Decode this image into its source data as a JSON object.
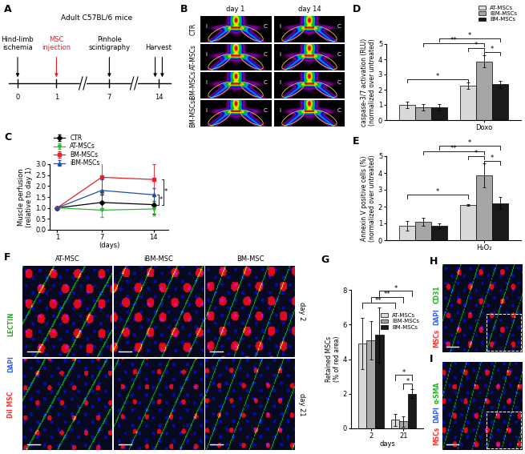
{
  "diagram": {
    "label": "A",
    "title": "Adult C57BL/6 mice",
    "events": [
      {
        "day": 0,
        "text": "Hind-limb\nischemia",
        "color": "#000000"
      },
      {
        "day": 1,
        "text": "MSC\ninjection",
        "color": "#e8202a"
      },
      {
        "day": 7,
        "text": "Pinhole\nscintigraphy",
        "color": "#000000"
      },
      {
        "day": 14,
        "text": "Harvest",
        "color": "#000000"
      }
    ]
  },
  "scintigraphy": {
    "label": "B",
    "columns": [
      "day 1",
      "day 14"
    ],
    "rows": [
      "CTR",
      "AT-MSCs",
      "iBM-MSCs",
      "BM-MSCs"
    ],
    "limbs": [
      "I",
      "C"
    ]
  },
  "chart_data": [
    {
      "label": "C",
      "type": "line",
      "xlabel": "(days)",
      "ylabel": "Muscle perfusion\n(relative to day 1)",
      "x": [
        1,
        7,
        14
      ],
      "xlim": [
        0,
        16
      ],
      "xticks": [
        1,
        7,
        14
      ],
      "ylim": [
        0,
        3
      ],
      "yticks": [
        {
          "value": 0,
          "label": "0.0"
        },
        {
          "value": 0.5,
          "label": "0.5"
        },
        {
          "value": 1,
          "label": "1.0"
        },
        {
          "value": 1.5,
          "label": "1.5"
        },
        {
          "value": 2,
          "label": "2.0"
        },
        {
          "value": 2.5,
          "label": "2.5"
        },
        {
          "value": 3,
          "label": "3.0"
        }
      ],
      "legend": "upper left",
      "series": [
        {
          "name": "CTR",
          "color": "#000000",
          "marker": "diamond",
          "values": [
            1,
            1.25,
            1.15
          ],
          "errors": [
            0,
            0.35,
            0.4
          ]
        },
        {
          "name": "AT-MSCs",
          "color": "#33b833",
          "marker": "triangle_down",
          "values": [
            1,
            0.9,
            0.95
          ],
          "errors": [
            0,
            0.3,
            0.3
          ]
        },
        {
          "name": "BM-MSCs",
          "color": "#e8202a",
          "marker": "square",
          "values": [
            1,
            2.4,
            2.3
          ],
          "errors": [
            0,
            0.7,
            0.7
          ]
        },
        {
          "name": "iBM-MSCs",
          "color": "#1f4fa8",
          "marker": "triangle_up",
          "values": [
            1,
            1.8,
            1.6
          ],
          "errors": [
            0,
            0.5,
            0.3
          ]
        }
      ],
      "annotations": [
        "*",
        "*"
      ]
    },
    {
      "label": "D",
      "type": "bar",
      "ylabel": "caspase-3/7 activation (RLU)\n(normalized over untreated)",
      "categories": [
        null,
        "Doxo"
      ],
      "ylim": [
        0,
        5
      ],
      "yticks": [
        0,
        1,
        2,
        3,
        4,
        5
      ],
      "legend": "upper right",
      "series": [
        {
          "name": "AT-MSCs",
          "color": "#d9d9d9",
          "values": [
            1.0,
            2.25
          ],
          "errors": [
            0.2,
            0.2
          ]
        },
        {
          "name": "iBM-MSCs",
          "color": "#a6a6a6",
          "values": [
            0.85,
            3.85
          ],
          "errors": [
            0.2,
            0.4
          ]
        },
        {
          "name": "BM-MSCs",
          "color": "#1a1a1a",
          "values": [
            0.85,
            2.35
          ],
          "errors": [
            0.2,
            0.25
          ]
        }
      ],
      "annotations": [
        "*",
        "**",
        "*",
        "*",
        "*"
      ]
    },
    {
      "label": "E",
      "type": "bar",
      "ylabel": "Annexin V positive cells (%)\n(normalized over untreated)",
      "categories": [
        null,
        "H₂O₂"
      ],
      "ylim": [
        0,
        5
      ],
      "yticks": [
        0,
        1,
        2,
        3,
        4,
        5
      ],
      "series": [
        {
          "name": "AT-MSCs",
          "color": "#d9d9d9",
          "values": [
            0.85,
            2.1
          ],
          "errors": [
            0.3,
            0.05
          ]
        },
        {
          "name": "iBM-MSCs",
          "color": "#a6a6a6",
          "values": [
            1.1,
            3.85
          ],
          "errors": [
            0.25,
            0.7
          ]
        },
        {
          "name": "BM-MSCs",
          "color": "#1a1a1a",
          "values": [
            0.85,
            2.2
          ],
          "errors": [
            0.15,
            0.35
          ]
        }
      ],
      "annotations": [
        "*",
        "**",
        "*",
        "*",
        "*"
      ]
    },
    {
      "label": "G",
      "type": "bar",
      "xlabel": "days",
      "ylabel": "Retained MSCs\n(% of red area)",
      "categories": [
        "2",
        "21"
      ],
      "ylim": [
        0,
        8
      ],
      "yticks": [
        0,
        2,
        4,
        6,
        8
      ],
      "legend": "upper right",
      "series": [
        {
          "name": "AT-MSCs",
          "color": "#d9d9d9",
          "values": [
            4.9,
            0.5
          ],
          "errors": [
            1.5,
            0.35
          ]
        },
        {
          "name": "iBM-MSCs",
          "color": "#a6a6a6",
          "values": [
            5.1,
            0.4
          ],
          "errors": [
            1.1,
            0.3
          ]
        },
        {
          "name": "BM-MSCs",
          "color": "#1a1a1a",
          "values": [
            5.4,
            2.0
          ],
          "errors": [
            1.6,
            0.25
          ]
        }
      ],
      "annotations": [
        "**",
        "**",
        "*",
        "*",
        "*"
      ]
    }
  ],
  "micrographs": {
    "label": "F",
    "columns": [
      "AT-MSC",
      "iBM-MSC",
      "BM-MSC"
    ],
    "rows": [
      "day 2",
      "day 21"
    ],
    "stains": [
      {
        "text": "DiI MSC",
        "color": "#ff3030"
      },
      {
        "text": "DAPI",
        "color": "#3060ff"
      },
      {
        "text": "LECTIN",
        "color": "#20b020"
      }
    ]
  },
  "stainings": [
    {
      "label": "H",
      "stains": [
        {
          "text": "MSCs",
          "color": "#ff3030"
        },
        {
          "text": "DAPI",
          "color": "#3060ff"
        },
        {
          "text": "CD31",
          "color": "#20b020"
        }
      ]
    },
    {
      "label": "I",
      "stains": [
        {
          "text": "MSCs",
          "color": "#ff3030"
        },
        {
          "text": "DAPI",
          "color": "#3060ff"
        },
        {
          "text": "α-SMA",
          "color": "#20b020"
        }
      ]
    }
  ]
}
